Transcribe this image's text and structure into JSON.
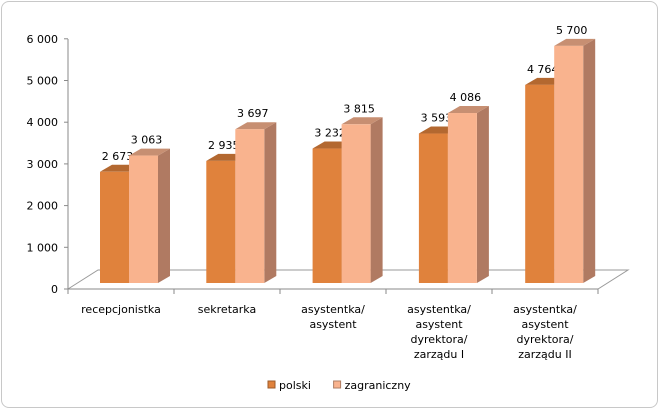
{
  "chart_data": {
    "type": "bar",
    "categories": [
      [
        "recepcjonistka"
      ],
      [
        "sekretarka"
      ],
      [
        "asystentka/",
        "asystent"
      ],
      [
        "asystentka/",
        "asystent",
        "dyrektora/",
        "zarządu I"
      ],
      [
        "asystentka/",
        "asystent",
        "dyrektora/",
        "zarządu II"
      ]
    ],
    "series": [
      {
        "name": "polski",
        "values": [
          2673,
          2935,
          3232,
          3593,
          4764
        ],
        "labels": [
          "2 673",
          "2 935",
          "3 232",
          "3 593",
          "4 764"
        ],
        "color": "#e0823c"
      },
      {
        "name": "zagraniczny",
        "values": [
          3063,
          3697,
          3815,
          4086,
          5700
        ],
        "labels": [
          "3 063",
          "3 697",
          "3 815",
          "4 086",
          "5 700"
        ],
        "color": "#f9b38e"
      }
    ],
    "yticks": [
      "0",
      "1 000",
      "2 000",
      "3 000",
      "4 000",
      "5 000",
      "6 000"
    ],
    "ylim": [
      0,
      6000
    ],
    "legend": "bottom",
    "style": "3d-column"
  }
}
